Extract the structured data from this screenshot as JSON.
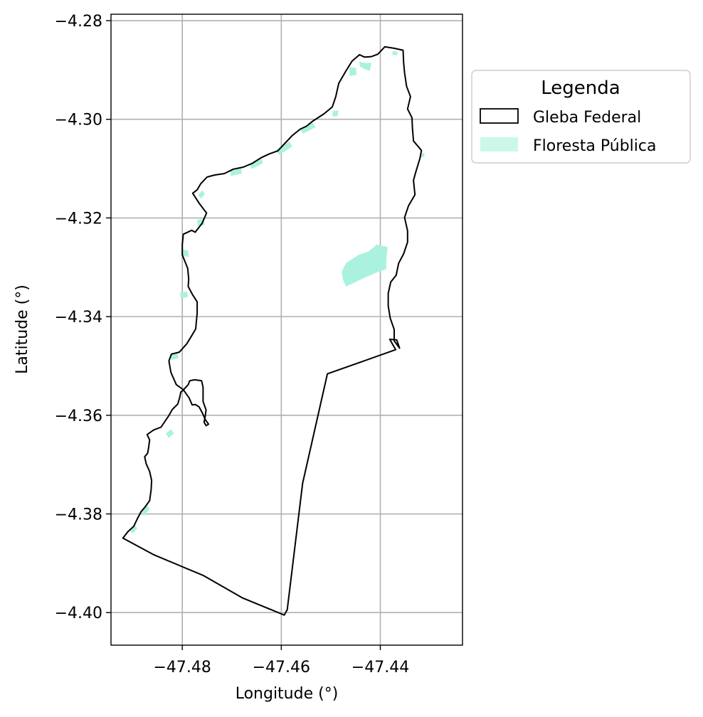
{
  "chart_data": {
    "type": "map",
    "xlabel": "Longitude (°)",
    "ylabel": "Latitude (°)",
    "xlim": [
      -47.4944,
      -47.4234
    ],
    "ylim": [
      -4.4066,
      -4.2787
    ],
    "xticks": [
      -47.48,
      -47.46,
      -47.44
    ],
    "xtick_labels": [
      "−47.48",
      "−47.46",
      "−47.44"
    ],
    "yticks": [
      -4.28,
      -4.3,
      -4.32,
      -4.34,
      -4.36,
      -4.38,
      -4.4
    ],
    "ytick_labels": [
      "−4.28",
      "−4.30",
      "−4.32",
      "−4.34",
      "−4.36",
      "−4.38",
      "−4.40"
    ],
    "grid": true,
    "legend": {
      "title": "Legenda",
      "position": "outside-right-top",
      "entries": [
        {
          "label": "Gleba Federal",
          "style": "outline",
          "edge_color": "#000000",
          "face_color": "#ffffff"
        },
        {
          "label": "Floresta Pública",
          "style": "fill",
          "face_color": "#aaf2dd"
        }
      ]
    },
    "layers": [
      {
        "name": "Gleba Federal",
        "edge_color": "#000000",
        "coordinates": [
          [
            -47.492,
            -4.3849
          ],
          [
            -47.491,
            -4.3836
          ],
          [
            -47.4898,
            -4.3825
          ],
          [
            -47.489,
            -4.3808
          ],
          [
            -47.4883,
            -4.3795
          ],
          [
            -47.4876,
            -4.3787
          ],
          [
            -47.4866,
            -4.3773
          ],
          [
            -47.4863,
            -4.3751
          ],
          [
            -47.4862,
            -4.3732
          ],
          [
            -47.4866,
            -4.3714
          ],
          [
            -47.4873,
            -4.3698
          ],
          [
            -47.4876,
            -4.3684
          ],
          [
            -47.487,
            -4.3677
          ],
          [
            -47.4868,
            -4.3665
          ],
          [
            -47.4866,
            -4.365
          ],
          [
            -47.4871,
            -4.3639
          ],
          [
            -47.4858,
            -4.363
          ],
          [
            -47.4843,
            -4.3624
          ],
          [
            -47.4828,
            -4.3602
          ],
          [
            -47.482,
            -4.3588
          ],
          [
            -47.4809,
            -4.3577
          ],
          [
            -47.4805,
            -4.3563
          ],
          [
            -47.4803,
            -4.3553
          ],
          [
            -47.4799,
            -4.355
          ],
          [
            -47.4788,
            -4.3538
          ],
          [
            -47.4785,
            -4.353
          ],
          [
            -47.4775,
            -4.3528
          ],
          [
            -47.4761,
            -4.353
          ],
          [
            -47.4758,
            -4.3543
          ],
          [
            -47.4758,
            -4.3555
          ],
          [
            -47.4758,
            -4.3572
          ],
          [
            -47.4752,
            -4.3589
          ],
          [
            -47.4754,
            -4.3604
          ],
          [
            -47.4756,
            -4.3614
          ],
          [
            -47.4752,
            -4.3621
          ],
          [
            -47.4747,
            -4.3618
          ],
          [
            -47.4754,
            -4.3608
          ],
          [
            -47.4759,
            -4.3596
          ],
          [
            -47.4766,
            -4.3583
          ],
          [
            -47.4774,
            -4.3578
          ],
          [
            -47.478,
            -4.3579
          ],
          [
            -47.4786,
            -4.3565
          ],
          [
            -47.4798,
            -4.3548
          ],
          [
            -47.4812,
            -4.3538
          ],
          [
            -47.4823,
            -4.3513
          ],
          [
            -47.4827,
            -4.349
          ],
          [
            -47.4822,
            -4.3476
          ],
          [
            -47.4806,
            -4.3472
          ],
          [
            -47.4791,
            -4.3455
          ],
          [
            -47.478,
            -4.3437
          ],
          [
            -47.4773,
            -4.3425
          ],
          [
            -47.477,
            -4.3393
          ],
          [
            -47.477,
            -4.337
          ],
          [
            -47.4779,
            -4.3356
          ],
          [
            -47.4788,
            -4.3339
          ],
          [
            -47.4787,
            -4.3324
          ],
          [
            -47.4789,
            -4.3302
          ],
          [
            -47.48,
            -4.3275
          ],
          [
            -47.48,
            -4.3254
          ],
          [
            -47.4798,
            -4.3233
          ],
          [
            -47.4781,
            -4.3225
          ],
          [
            -47.4774,
            -4.3229
          ],
          [
            -47.476,
            -4.3211
          ],
          [
            -47.4751,
            -4.319
          ],
          [
            -47.4766,
            -4.317
          ],
          [
            -47.4779,
            -4.315
          ],
          [
            -47.477,
            -4.3143
          ],
          [
            -47.4763,
            -4.3131
          ],
          [
            -47.475,
            -4.3117
          ],
          [
            -47.4735,
            -4.3113
          ],
          [
            -47.4715,
            -4.311
          ],
          [
            -47.4697,
            -4.3101
          ],
          [
            -47.4677,
            -4.3097
          ],
          [
            -47.4658,
            -4.3089
          ],
          [
            -47.4641,
            -4.3078
          ],
          [
            -47.4624,
            -4.307
          ],
          [
            -47.4607,
            -4.3064
          ],
          [
            -47.4594,
            -4.305
          ],
          [
            -47.4578,
            -4.3033
          ],
          [
            -47.4562,
            -4.302
          ],
          [
            -47.4549,
            -4.3014
          ],
          [
            -47.4537,
            -4.3004
          ],
          [
            -47.4514,
            -4.2989
          ],
          [
            -47.4497,
            -4.2975
          ],
          [
            -47.449,
            -4.2954
          ],
          [
            -47.4484,
            -4.2927
          ],
          [
            -47.447,
            -4.2903
          ],
          [
            -47.4457,
            -4.2882
          ],
          [
            -47.4442,
            -4.2869
          ],
          [
            -47.4432,
            -4.2874
          ],
          [
            -47.4418,
            -4.2873
          ],
          [
            -47.4405,
            -4.2868
          ],
          [
            -47.4391,
            -4.2853
          ],
          [
            -47.4372,
            -4.2856
          ],
          [
            -47.4354,
            -4.286
          ],
          [
            -47.4353,
            -4.2884
          ],
          [
            -47.4351,
            -4.2906
          ],
          [
            -47.4347,
            -4.2933
          ],
          [
            -47.4339,
            -4.2954
          ],
          [
            -47.4345,
            -4.2979
          ],
          [
            -47.4336,
            -4.2997
          ],
          [
            -47.4335,
            -4.3019
          ],
          [
            -47.4333,
            -4.3044
          ],
          [
            -47.4317,
            -4.3063
          ],
          [
            -47.432,
            -4.3079
          ],
          [
            -47.4329,
            -4.3109
          ],
          [
            -47.4333,
            -4.3124
          ],
          [
            -47.433,
            -4.3153
          ],
          [
            -47.4343,
            -4.3175
          ],
          [
            -47.4351,
            -4.3199
          ],
          [
            -47.4345,
            -4.3226
          ],
          [
            -47.4345,
            -4.3249
          ],
          [
            -47.4353,
            -4.3273
          ],
          [
            -47.4363,
            -4.3292
          ],
          [
            -47.4368,
            -4.3316
          ],
          [
            -47.4379,
            -4.333
          ],
          [
            -47.4384,
            -4.3353
          ],
          [
            -47.4384,
            -4.3378
          ],
          [
            -47.438,
            -4.3403
          ],
          [
            -47.4372,
            -4.3426
          ],
          [
            -47.4372,
            -4.3449
          ],
          [
            -47.4361,
            -4.3464
          ],
          [
            -47.4367,
            -4.3447
          ],
          [
            -47.4381,
            -4.3446
          ],
          [
            -47.4369,
            -4.3467
          ],
          [
            -47.4507,
            -4.3516
          ],
          [
            -47.4557,
            -4.3738
          ],
          [
            -47.4588,
            -4.3994
          ],
          [
            -47.4594,
            -4.4005
          ],
          [
            -47.4679,
            -4.397
          ],
          [
            -47.4757,
            -4.3925
          ],
          [
            -47.4857,
            -4.3883
          ],
          [
            -47.492,
            -4.3849
          ]
        ]
      },
      {
        "name": "Floresta Pública",
        "face_color": "#aaf2dd",
        "polygons": [
          [
            [
              -47.4469,
              -4.3339
            ],
            [
              -47.4431,
              -4.3321
            ],
            [
              -47.4404,
              -4.3309
            ],
            [
              -47.4388,
              -4.3304
            ],
            [
              -47.4388,
              -4.3284
            ],
            [
              -47.4385,
              -4.3259
            ],
            [
              -47.4407,
              -4.3254
            ],
            [
              -47.4424,
              -4.3268
            ],
            [
              -47.4444,
              -4.3275
            ],
            [
              -47.4469,
              -4.3291
            ],
            [
              -47.4478,
              -4.3309
            ],
            [
              -47.4475,
              -4.3327
            ]
          ],
          [
            [
              -47.4443,
              -4.2883
            ],
            [
              -47.443,
              -4.2886
            ],
            [
              -47.4418,
              -4.2885
            ],
            [
              -47.4421,
              -4.2902
            ],
            [
              -47.4432,
              -4.2898
            ],
            [
              -47.4441,
              -4.2893
            ]
          ],
          [
            [
              -47.4463,
              -4.2894
            ],
            [
              -47.4449,
              -4.2896
            ],
            [
              -47.4448,
              -4.291
            ],
            [
              -47.4462,
              -4.2912
            ]
          ],
          [
            [
              -47.4497,
              -4.2994
            ],
            [
              -47.4486,
              -4.2994
            ],
            [
              -47.4485,
              -4.2982
            ],
            [
              -47.4496,
              -4.2983
            ]
          ],
          [
            [
              -47.4563,
              -4.302
            ],
            [
              -47.4537,
              -4.3006
            ],
            [
              -47.4531,
              -4.3016
            ],
            [
              -47.4556,
              -4.3029
            ]
          ],
          [
            [
              -47.4611,
              -4.3062
            ],
            [
              -47.4584,
              -4.3045
            ],
            [
              -47.4578,
              -4.3055
            ],
            [
              -47.4604,
              -4.3072
            ]
          ],
          [
            [
              -47.4664,
              -4.3091
            ],
            [
              -47.4641,
              -4.3078
            ],
            [
              -47.4637,
              -4.3089
            ],
            [
              -47.466,
              -4.3101
            ]
          ],
          [
            [
              -47.4703,
              -4.3104
            ],
            [
              -47.4681,
              -4.3099
            ],
            [
              -47.468,
              -4.311
            ],
            [
              -47.4702,
              -4.3115
            ]
          ],
          [
            [
              -47.4768,
              -4.3154
            ],
            [
              -47.476,
              -4.3144
            ],
            [
              -47.4754,
              -4.3151
            ],
            [
              -47.4762,
              -4.3161
            ]
          ],
          [
            [
              -47.477,
              -4.3204
            ],
            [
              -47.4756,
              -4.3201
            ],
            [
              -47.4755,
              -4.3215
            ],
            [
              -47.4769,
              -4.3216
            ]
          ],
          [
            [
              -47.4788,
              -4.3266
            ],
            [
              -47.4799,
              -4.3264
            ],
            [
              -47.4799,
              -4.3277
            ],
            [
              -47.4787,
              -4.3279
            ]
          ],
          [
            [
              -47.4805,
              -4.3352
            ],
            [
              -47.4791,
              -4.3349
            ],
            [
              -47.4788,
              -4.336
            ],
            [
              -47.4803,
              -4.3363
            ]
          ],
          [
            [
              -47.4823,
              -4.3476
            ],
            [
              -47.481,
              -4.3472
            ],
            [
              -47.4808,
              -4.3484
            ],
            [
              -47.4822,
              -4.3488
            ]
          ],
          [
            [
              -47.4833,
              -4.3637
            ],
            [
              -47.4823,
              -4.3628
            ],
            [
              -47.4817,
              -4.3637
            ],
            [
              -47.4828,
              -4.3646
            ]
          ],
          [
            [
              -47.4883,
              -4.3795
            ],
            [
              -47.4872,
              -4.3781
            ],
            [
              -47.4866,
              -4.379
            ],
            [
              -47.4877,
              -4.3804
            ]
          ],
          [
            [
              -47.4906,
              -4.3832
            ],
            [
              -47.4896,
              -4.3822
            ],
            [
              -47.4891,
              -4.383
            ],
            [
              -47.4901,
              -4.384
            ]
          ],
          [
            [
              -47.432,
              -4.307
            ],
            [
              -47.4311,
              -4.3068
            ],
            [
              -47.4311,
              -4.3076
            ],
            [
              -47.432,
              -4.3078
            ]
          ],
          [
            [
              -47.4375,
              -4.2862
            ],
            [
              -47.4365,
              -4.2863
            ],
            [
              -47.4366,
              -4.287
            ],
            [
              -47.4376,
              -4.2869
            ]
          ]
        ]
      }
    ]
  }
}
